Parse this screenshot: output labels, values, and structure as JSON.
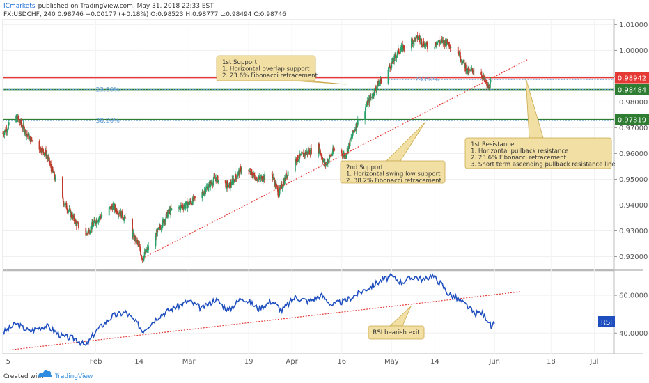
{
  "header": {
    "broker": "ICmarkets",
    "published": "published on TradingView.com, May 31, 2018 22:33 EST",
    "symbol_line": "FX:USDCHF, 240 0.98746 +0.00177 (+0.18%) O:0.98523 H:0.98777 L:0.98494 C:0.98746"
  },
  "footer": {
    "created_with": "Created with",
    "brand": "TradingView"
  },
  "colors": {
    "candle_up": "#26a269",
    "candle_down": "#c0392b",
    "rsi": "#1f4fbf",
    "support_line": "#2e7d32",
    "resistance_line": "#e53935",
    "trendline": "#e53935",
    "fib": "#5b9bd5",
    "note_bg": "#f2dfa4",
    "note_border": "#c9a94b"
  },
  "chart_data": [
    {
      "type": "candlestick",
      "series": [
        {
          "name": "FX:USDCHF, 240"
        }
      ],
      "y_ticks": [
        "1.01000",
        "1.00000",
        "0.99000",
        "0.98000",
        "0.97000",
        "0.96000",
        "0.95000",
        "0.94000",
        "0.93000",
        "0.92000"
      ],
      "y_tick_values": [
        1.01,
        1.0,
        0.99,
        0.98,
        0.97,
        0.96,
        0.95,
        0.94,
        0.93,
        0.92
      ],
      "ylim": [
        0.915,
        1.012
      ],
      "x_ticks": [
        "5",
        "Feb",
        "14",
        "Mar",
        "19",
        "Apr",
        "16",
        "May",
        "14",
        "Jun",
        "18",
        "Jul"
      ],
      "x_tick_dates": [
        "2018-01-05",
        "2018-02-01",
        "2018-02-14",
        "2018-03-01",
        "2018-03-19",
        "2018-04-01",
        "2018-04-16",
        "2018-05-01",
        "2018-05-14",
        "2018-06-01",
        "2018-06-18",
        "2018-07-01"
      ],
      "xlim": [
        "2018-01-04",
        "2018-07-07"
      ],
      "price_path": [
        [
          "2018-01-04",
          0.9678
        ],
        [
          "2018-01-08",
          0.9745
        ],
        [
          "2018-01-12",
          0.966
        ],
        [
          "2018-01-17",
          0.96
        ],
        [
          "2018-01-22",
          0.942
        ],
        [
          "2018-01-26",
          0.933
        ],
        [
          "2018-01-29",
          0.9285
        ],
        [
          "2018-02-01",
          0.934
        ],
        [
          "2018-02-06",
          0.9395
        ],
        [
          "2018-02-09",
          0.936
        ],
        [
          "2018-02-14",
          0.924
        ],
        [
          "2018-02-15",
          0.9193
        ],
        [
          "2018-02-20",
          0.9305
        ],
        [
          "2018-02-23",
          0.9375
        ],
        [
          "2018-03-01",
          0.9405
        ],
        [
          "2018-03-05",
          0.9445
        ],
        [
          "2018-03-09",
          0.9505
        ],
        [
          "2018-03-13",
          0.947
        ],
        [
          "2018-03-17",
          0.9545
        ],
        [
          "2018-03-22",
          0.95
        ],
        [
          "2018-03-26",
          0.952
        ],
        [
          "2018-03-28",
          0.9445
        ],
        [
          "2018-04-01",
          0.9565
        ],
        [
          "2018-04-05",
          0.96
        ],
        [
          "2018-04-09",
          0.9625
        ],
        [
          "2018-04-11",
          0.9555
        ],
        [
          "2018-04-14",
          0.962
        ],
        [
          "2018-04-17",
          0.959
        ],
        [
          "2018-04-20",
          0.97
        ],
        [
          "2018-04-24",
          0.98
        ],
        [
          "2018-04-27",
          0.987
        ],
        [
          "2018-04-30",
          0.9925
        ],
        [
          "2018-05-03",
          0.9995
        ],
        [
          "2018-05-06",
          1.003
        ],
        [
          "2018-05-09",
          1.005
        ],
        [
          "2018-05-12",
          1.001
        ],
        [
          "2018-05-15",
          1.0035
        ],
        [
          "2018-05-18",
          1.003
        ],
        [
          "2018-05-21",
          0.9995
        ],
        [
          "2018-05-24",
          0.9915
        ],
        [
          "2018-05-26",
          0.9925
        ],
        [
          "2018-05-28",
          0.991
        ],
        [
          "2018-05-30",
          0.9855
        ],
        [
          "2018-05-31",
          0.9875
        ]
      ],
      "levels": [
        {
          "label": "0.98942",
          "value": 0.98942,
          "role": "resistance"
        },
        {
          "label": "0.98484",
          "value": 0.98484,
          "role": "support"
        },
        {
          "label": "0.97319",
          "value": 0.97319,
          "role": "support"
        }
      ],
      "fibs": [
        {
          "label": "23.60%",
          "value": 0.9887,
          "side": "right"
        },
        {
          "label": "23.60%",
          "value": 0.98484,
          "side": "left"
        },
        {
          "label": "38.20%",
          "value": 0.9728,
          "side": "left"
        }
      ],
      "trendline": [
        [
          "2018-02-15",
          0.9193
        ],
        [
          "2018-06-11",
          0.9965
        ]
      ],
      "annotations": [
        {
          "lines": [
            "1st Support",
            "1. Horizontal overlap support",
            "2. 23.6% Fibonacci retracement"
          ]
        },
        {
          "lines": [
            "2nd Support",
            "1. Horizontal swing low support",
            "2. 38.2% Fibonacci retracement"
          ]
        },
        {
          "lines": [
            "1st Resistance",
            "1. Horizontal pullback resistance",
            "2. 23.6% Fibonacci retracement",
            "3. Short term ascending pullback resistance line"
          ]
        }
      ]
    },
    {
      "type": "line",
      "series": [
        {
          "name": "RSI"
        }
      ],
      "y_ticks": [
        "60.0000",
        "40.0000"
      ],
      "y_tick_values": [
        60,
        40
      ],
      "ylim": [
        29,
        73
      ],
      "path": [
        [
          "2018-01-04",
          40
        ],
        [
          "2018-01-08",
          45
        ],
        [
          "2018-01-12",
          41
        ],
        [
          "2018-01-17",
          44
        ],
        [
          "2018-01-22",
          38
        ],
        [
          "2018-01-26",
          37
        ],
        [
          "2018-01-29",
          33
        ],
        [
          "2018-02-01",
          41
        ],
        [
          "2018-02-06",
          49
        ],
        [
          "2018-02-10",
          51
        ],
        [
          "2018-02-14",
          44
        ],
        [
          "2018-02-15",
          41
        ],
        [
          "2018-02-20",
          49
        ],
        [
          "2018-02-24",
          53
        ],
        [
          "2018-03-01",
          57
        ],
        [
          "2018-03-05",
          53
        ],
        [
          "2018-03-09",
          58
        ],
        [
          "2018-03-13",
          52
        ],
        [
          "2018-03-17",
          59
        ],
        [
          "2018-03-22",
          53
        ],
        [
          "2018-03-26",
          57
        ],
        [
          "2018-03-29",
          52
        ],
        [
          "2018-04-02",
          59
        ],
        [
          "2018-04-06",
          57
        ],
        [
          "2018-04-10",
          60
        ],
        [
          "2018-04-13",
          55
        ],
        [
          "2018-04-17",
          57
        ],
        [
          "2018-04-21",
          61
        ],
        [
          "2018-04-25",
          65
        ],
        [
          "2018-04-28",
          68
        ],
        [
          "2018-05-01",
          70
        ],
        [
          "2018-05-04",
          67
        ],
        [
          "2018-05-08",
          70
        ],
        [
          "2018-05-11",
          68
        ],
        [
          "2018-05-13",
          71
        ],
        [
          "2018-05-16",
          66
        ],
        [
          "2018-05-18",
          61
        ],
        [
          "2018-05-21",
          58
        ],
        [
          "2018-05-24",
          54
        ],
        [
          "2018-05-26",
          50
        ],
        [
          "2018-05-28",
          51
        ],
        [
          "2018-05-30",
          47
        ],
        [
          "2018-05-31",
          43
        ],
        [
          "2018-06-01",
          45
        ]
      ],
      "trendline": [
        [
          "2018-01-06",
          31
        ],
        [
          "2018-06-09",
          62
        ]
      ],
      "annotations": [
        {
          "lines": [
            "RSI bearish exit"
          ]
        }
      ]
    }
  ]
}
